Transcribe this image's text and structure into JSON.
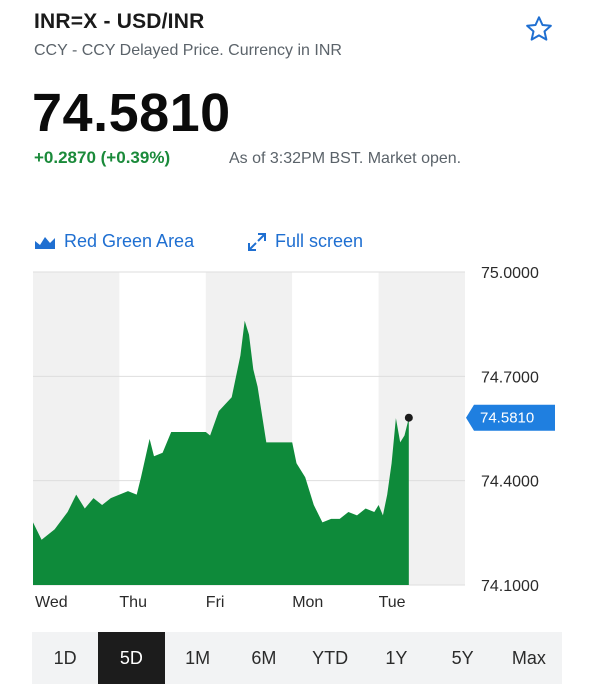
{
  "header": {
    "title": "INR=X - USD/INR",
    "subtitle": "CCY - CCY Delayed Price. Currency in INR",
    "favorite_icon": "star-outline-icon"
  },
  "quote": {
    "price": "74.5810",
    "change": "+0.2870 (+0.39%)",
    "as_of": "As of 3:32PM BST. Market open."
  },
  "toolbar": {
    "chart_type_icon": "area-chart-icon",
    "chart_type_label": "Red Green Area",
    "fullscreen_icon": "expand-icon",
    "fullscreen_label": "Full screen"
  },
  "colors": {
    "accent": "#1f6fd1",
    "positive": "#1a8a3a",
    "area_fill": "#0e8a3a"
  },
  "chart_data": {
    "type": "area",
    "title": "",
    "xlabel": "",
    "ylabel": "",
    "ylim": [
      74.1,
      75.0
    ],
    "y_ticks": [
      "75.0000",
      "74.7000",
      "74.4000",
      "74.1000"
    ],
    "x_ticks": [
      "Wed",
      "Thu",
      "Fri",
      "Mon",
      "Tue"
    ],
    "current_value": "74.5810",
    "series": [
      {
        "x": [
          0,
          0.1,
          0.25,
          0.4,
          0.5,
          0.6,
          0.7,
          0.8,
          0.9,
          1.0,
          1.1,
          1.2,
          1.25,
          1.35,
          1.4,
          1.5,
          1.6,
          1.7,
          1.8,
          1.9,
          2.0,
          2.05,
          2.15,
          2.3,
          2.4,
          2.45,
          2.5,
          2.55,
          2.6,
          2.7,
          2.8,
          2.9,
          3.0,
          3.05,
          3.15,
          3.25,
          3.35,
          3.45,
          3.55,
          3.65,
          3.75,
          3.85,
          3.95,
          4.0,
          4.05,
          4.1,
          4.15,
          4.2,
          4.25,
          4.3,
          4.35
        ],
        "values": [
          74.28,
          74.23,
          74.26,
          74.31,
          74.36,
          74.32,
          74.35,
          74.33,
          74.35,
          74.36,
          74.37,
          74.36,
          74.41,
          74.52,
          74.47,
          74.48,
          74.54,
          74.54,
          74.54,
          74.54,
          74.54,
          74.53,
          74.6,
          74.64,
          74.76,
          74.86,
          74.82,
          74.72,
          74.67,
          74.51,
          74.51,
          74.51,
          74.51,
          74.45,
          74.41,
          74.33,
          74.28,
          74.29,
          74.29,
          74.31,
          74.3,
          74.32,
          74.31,
          74.33,
          74.3,
          74.36,
          74.45,
          74.58,
          74.51,
          74.53,
          74.58
        ]
      }
    ]
  },
  "ranges": {
    "items": [
      "1D",
      "5D",
      "1M",
      "6M",
      "YTD",
      "1Y",
      "5Y",
      "Max"
    ],
    "selected": "5D"
  }
}
